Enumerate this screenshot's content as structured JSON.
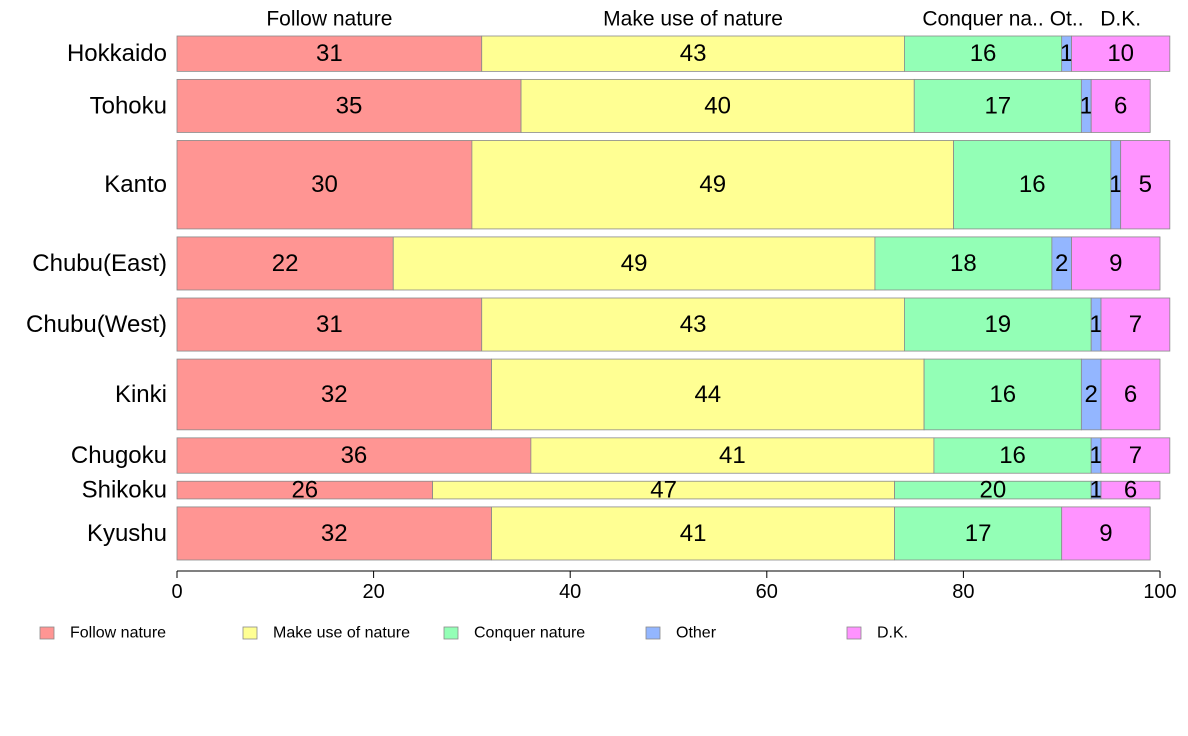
{
  "chart_data": {
    "type": "bar",
    "orientation": "horizontal",
    "stacked": true,
    "categories": [
      "Hokkaido",
      "Tohoku",
      "Kanto",
      "Chubu(East)",
      "Chubu(West)",
      "Kinki",
      "Chugoku",
      "Shikoku",
      "Kyushu"
    ],
    "category_weights": [
      2,
      3,
      5,
      3,
      3,
      4,
      2,
      1,
      3
    ],
    "series": [
      {
        "name": "Follow nature",
        "color": "#ff9593",
        "values": [
          31,
          35,
          30,
          22,
          31,
          32,
          36,
          26,
          32
        ],
        "labels": [
          "31",
          "35",
          "30",
          "22",
          "31",
          "32",
          "36",
          "26",
          "32"
        ]
      },
      {
        "name": "Make use of nature",
        "color": "#ffff93",
        "values": [
          43,
          40,
          49,
          49,
          43,
          44,
          41,
          47,
          41
        ],
        "labels": [
          "43",
          "40",
          "49",
          "49",
          "43",
          "44",
          "41",
          "47",
          "41"
        ]
      },
      {
        "name": "Conquer nature",
        "color": "#93ffb6",
        "values": [
          16,
          17,
          16,
          18,
          19,
          16,
          16,
          20,
          17
        ],
        "labels": [
          "16",
          "17",
          "16",
          "18",
          "19",
          "16",
          "16",
          "20",
          "17"
        ]
      },
      {
        "name": "Other",
        "color": "#93b6ff",
        "values": [
          1,
          1,
          1,
          2,
          1,
          2,
          1,
          1,
          0
        ],
        "labels": [
          "1",
          "1",
          "1",
          "2",
          "1",
          "2",
          "1",
          "1",
          ""
        ]
      },
      {
        "name": "D.K.",
        "color": "#ff93ff",
        "values": [
          10,
          6,
          5,
          9,
          7,
          6,
          7,
          6,
          9
        ],
        "labels": [
          "10",
          "6",
          "5",
          "9",
          "7",
          "6",
          "7",
          "6",
          "9"
        ]
      }
    ],
    "column_headers": [
      "Follow nature",
      "Make use of nature",
      "Conquer na..",
      "Ot..",
      "D.K."
    ],
    "xlim": [
      0,
      100
    ],
    "xticks": [
      0,
      20,
      40,
      60,
      80,
      100
    ],
    "legend_position": "bottom-left",
    "grid": false
  }
}
